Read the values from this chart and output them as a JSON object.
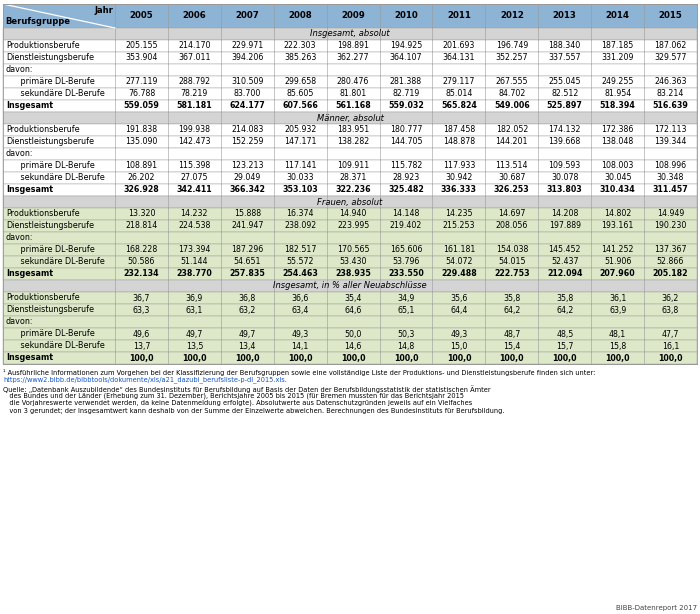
{
  "years": [
    "2005",
    "2006",
    "2007",
    "2008",
    "2009",
    "2010",
    "2011",
    "2012",
    "2013",
    "2014",
    "2015"
  ],
  "header_bg": "#8db3d5",
  "section_bg": "#d4d4d4",
  "frauen_bg": "#dce8c8",
  "white_bg": "#ffffff",
  "border_color": "#999999",
  "rows": [
    {
      "type": "section",
      "section": "Insgesamt, absolut",
      "color": "white"
    },
    {
      "label": "Produktionsberufe",
      "indent": 0,
      "bold": false,
      "color": "white",
      "values": [
        "205.155",
        "214.170",
        "229.971",
        "222.303",
        "198.891",
        "194.925",
        "201.693",
        "196.749",
        "188.340",
        "187.185",
        "187.062"
      ]
    },
    {
      "label": "Dienstleistungsberufe",
      "indent": 0,
      "bold": false,
      "color": "white",
      "values": [
        "353.904",
        "367.011",
        "394.206",
        "385.263",
        "362.277",
        "364.107",
        "364.131",
        "352.257",
        "337.557",
        "331.209",
        "329.577"
      ]
    },
    {
      "label": "davon:",
      "indent": 0,
      "bold": false,
      "color": "white",
      "values": [
        "",
        "",
        "",
        "",
        "",
        "",
        "",
        "",
        "",
        "",
        ""
      ]
    },
    {
      "label": "   primäre DL-Berufe",
      "indent": 1,
      "bold": false,
      "color": "white",
      "values": [
        "277.119",
        "288.792",
        "310.509",
        "299.658",
        "280.476",
        "281.388",
        "279.117",
        "267.555",
        "255.045",
        "249.255",
        "246.363"
      ]
    },
    {
      "label": "   sekundäre DL-Berufe",
      "indent": 1,
      "bold": false,
      "color": "white",
      "values": [
        "76.788",
        "78.219",
        "83.700",
        "85.605",
        "81.801",
        "82.719",
        "85.014",
        "84.702",
        "82.512",
        "81.954",
        "83.214"
      ]
    },
    {
      "label": "Insgesamt",
      "indent": 0,
      "bold": true,
      "color": "white",
      "values": [
        "559.059",
        "581.181",
        "624.177",
        "607.566",
        "561.168",
        "559.032",
        "565.824",
        "549.006",
        "525.897",
        "518.394",
        "516.639"
      ]
    },
    {
      "type": "section",
      "section": "Männer, absolut",
      "color": "white"
    },
    {
      "label": "Produktionsberufe",
      "indent": 0,
      "bold": false,
      "color": "white",
      "values": [
        "191.838",
        "199.938",
        "214.083",
        "205.932",
        "183.951",
        "180.777",
        "187.458",
        "182.052",
        "174.132",
        "172.386",
        "172.113"
      ]
    },
    {
      "label": "Dienstleistungsberufe",
      "indent": 0,
      "bold": false,
      "color": "white",
      "values": [
        "135.090",
        "142.473",
        "152.259",
        "147.171",
        "138.282",
        "144.705",
        "148.878",
        "144.201",
        "139.668",
        "138.048",
        "139.344"
      ]
    },
    {
      "label": "davon:",
      "indent": 0,
      "bold": false,
      "color": "white",
      "values": [
        "",
        "",
        "",
        "",
        "",
        "",
        "",
        "",
        "",
        "",
        ""
      ]
    },
    {
      "label": "   primäre DL-Berufe",
      "indent": 1,
      "bold": false,
      "color": "white",
      "values": [
        "108.891",
        "115.398",
        "123.213",
        "117.141",
        "109.911",
        "115.782",
        "117.933",
        "113.514",
        "109.593",
        "108.003",
        "108.996"
      ]
    },
    {
      "label": "   sekundäre DL-Berufe",
      "indent": 1,
      "bold": false,
      "color": "white",
      "values": [
        "26.202",
        "27.075",
        "29.049",
        "30.033",
        "28.371",
        "28.923",
        "30.942",
        "30.687",
        "30.078",
        "30.045",
        "30.348"
      ]
    },
    {
      "label": "Insgesamt",
      "indent": 0,
      "bold": true,
      "color": "white",
      "values": [
        "326.928",
        "342.411",
        "366.342",
        "353.103",
        "322.236",
        "325.482",
        "336.333",
        "326.253",
        "313.803",
        "310.434",
        "311.457"
      ]
    },
    {
      "type": "section",
      "section": "Frauen, absolut",
      "color": "frauen"
    },
    {
      "label": "Produktionsberufe",
      "indent": 0,
      "bold": false,
      "color": "frauen",
      "values": [
        "13.320",
        "14.232",
        "15.888",
        "16.374",
        "14.940",
        "14.148",
        "14.235",
        "14.697",
        "14.208",
        "14.802",
        "14.949"
      ]
    },
    {
      "label": "Dienstleistungsberufe",
      "indent": 0,
      "bold": false,
      "color": "frauen",
      "values": [
        "218.814",
        "224.538",
        "241.947",
        "238.092",
        "223.995",
        "219.402",
        "215.253",
        "208.056",
        "197.889",
        "193.161",
        "190.230"
      ]
    },
    {
      "label": "davon:",
      "indent": 0,
      "bold": false,
      "color": "frauen",
      "values": [
        "",
        "",
        "",
        "",
        "",
        "",
        "",
        "",
        "",
        "",
        ""
      ]
    },
    {
      "label": "   primäre DL-Berufe",
      "indent": 1,
      "bold": false,
      "color": "frauen",
      "values": [
        "168.228",
        "173.394",
        "187.296",
        "182.517",
        "170.565",
        "165.606",
        "161.181",
        "154.038",
        "145.452",
        "141.252",
        "137.367"
      ]
    },
    {
      "label": "   sekundäre DL-Berufe",
      "indent": 1,
      "bold": false,
      "color": "frauen",
      "values": [
        "50.586",
        "51.144",
        "54.651",
        "55.572",
        "53.430",
        "53.796",
        "54.072",
        "54.015",
        "52.437",
        "51.906",
        "52.866"
      ]
    },
    {
      "label": "Insgesamt",
      "indent": 0,
      "bold": true,
      "color": "frauen",
      "values": [
        "232.134",
        "238.770",
        "257.835",
        "254.463",
        "238.935",
        "233.550",
        "229.488",
        "222.753",
        "212.094",
        "207.960",
        "205.182"
      ]
    },
    {
      "type": "section",
      "section": "Insgesamt, in % aller Neuabschlüsse",
      "color": "frauen"
    },
    {
      "label": "Produktionsberufe",
      "indent": 0,
      "bold": false,
      "color": "frauen",
      "values": [
        "36,7",
        "36,9",
        "36,8",
        "36,6",
        "35,4",
        "34,9",
        "35,6",
        "35,8",
        "35,8",
        "36,1",
        "36,2"
      ]
    },
    {
      "label": "Dienstleistungsberufe",
      "indent": 0,
      "bold": false,
      "color": "frauen",
      "values": [
        "63,3",
        "63,1",
        "63,2",
        "63,4",
        "64,6",
        "65,1",
        "64,4",
        "64,2",
        "64,2",
        "63,9",
        "63,8"
      ]
    },
    {
      "label": "davon:",
      "indent": 0,
      "bold": false,
      "color": "frauen",
      "values": [
        "",
        "",
        "",
        "",
        "",
        "",
        "",
        "",
        "",
        "",
        ""
      ]
    },
    {
      "label": "   primäre DL-Berufe",
      "indent": 1,
      "bold": false,
      "color": "frauen",
      "values": [
        "49,6",
        "49,7",
        "49,7",
        "49,3",
        "50,0",
        "50,3",
        "49,3",
        "48,7",
        "48,5",
        "48,1",
        "47,7"
      ]
    },
    {
      "label": "   sekundäre DL-Berufe",
      "indent": 1,
      "bold": false,
      "color": "frauen",
      "values": [
        "13,7",
        "13,5",
        "13,4",
        "14,1",
        "14,6",
        "14,8",
        "15,0",
        "15,4",
        "15,7",
        "15,8",
        "16,1"
      ]
    },
    {
      "label": "Insgesamt",
      "indent": 0,
      "bold": true,
      "color": "frauen",
      "values": [
        "100,0",
        "100,0",
        "100,0",
        "100,0",
        "100,0",
        "100,0",
        "100,0",
        "100,0",
        "100,0",
        "100,0",
        "100,0"
      ]
    }
  ],
  "footnote1": "¹ Ausführliche Informationen zum Vorgehen bei der Klassifizierung der Berufsgruppen sowie eine vollständige Liste der Produktions- und Dienstleistungsberufe finden sich unter:",
  "footnote_link": "https://www2.bibb.de/bibbtools/dokumente/xls/a21_dazubi_berufsliste-p-dl_2015.xls.",
  "footnote2_line1": "Quelle: „Datenbank Auszubildende“ des Bundesinstituts für Berufsbildung auf Basis der Daten der Berufsbildungsstatistik der statistischen Ämter",
  "footnote2_line2": "   des Bundes und der Länder (Erhebung zum 31. Dezember), Berichtsjahre 2005 bis 2015 (für Bremen mussten für das Berichtsjahr 2015",
  "footnote2_line3": "   die Vorjahreswerte verwendet werden, da keine Datenmeldung erfolgte). Absolutwerte aus Datenschutzgründen jeweils auf ein Vielfaches",
  "footnote2_line4": "   von 3 gerundet; der Insgesamtwert kann deshalb von der Summe der Einzelwerte abweichen. Berechnungen des Bundesinstituts für Berufsbildung.",
  "footer_right": "BIBB-Datenreport 2017"
}
